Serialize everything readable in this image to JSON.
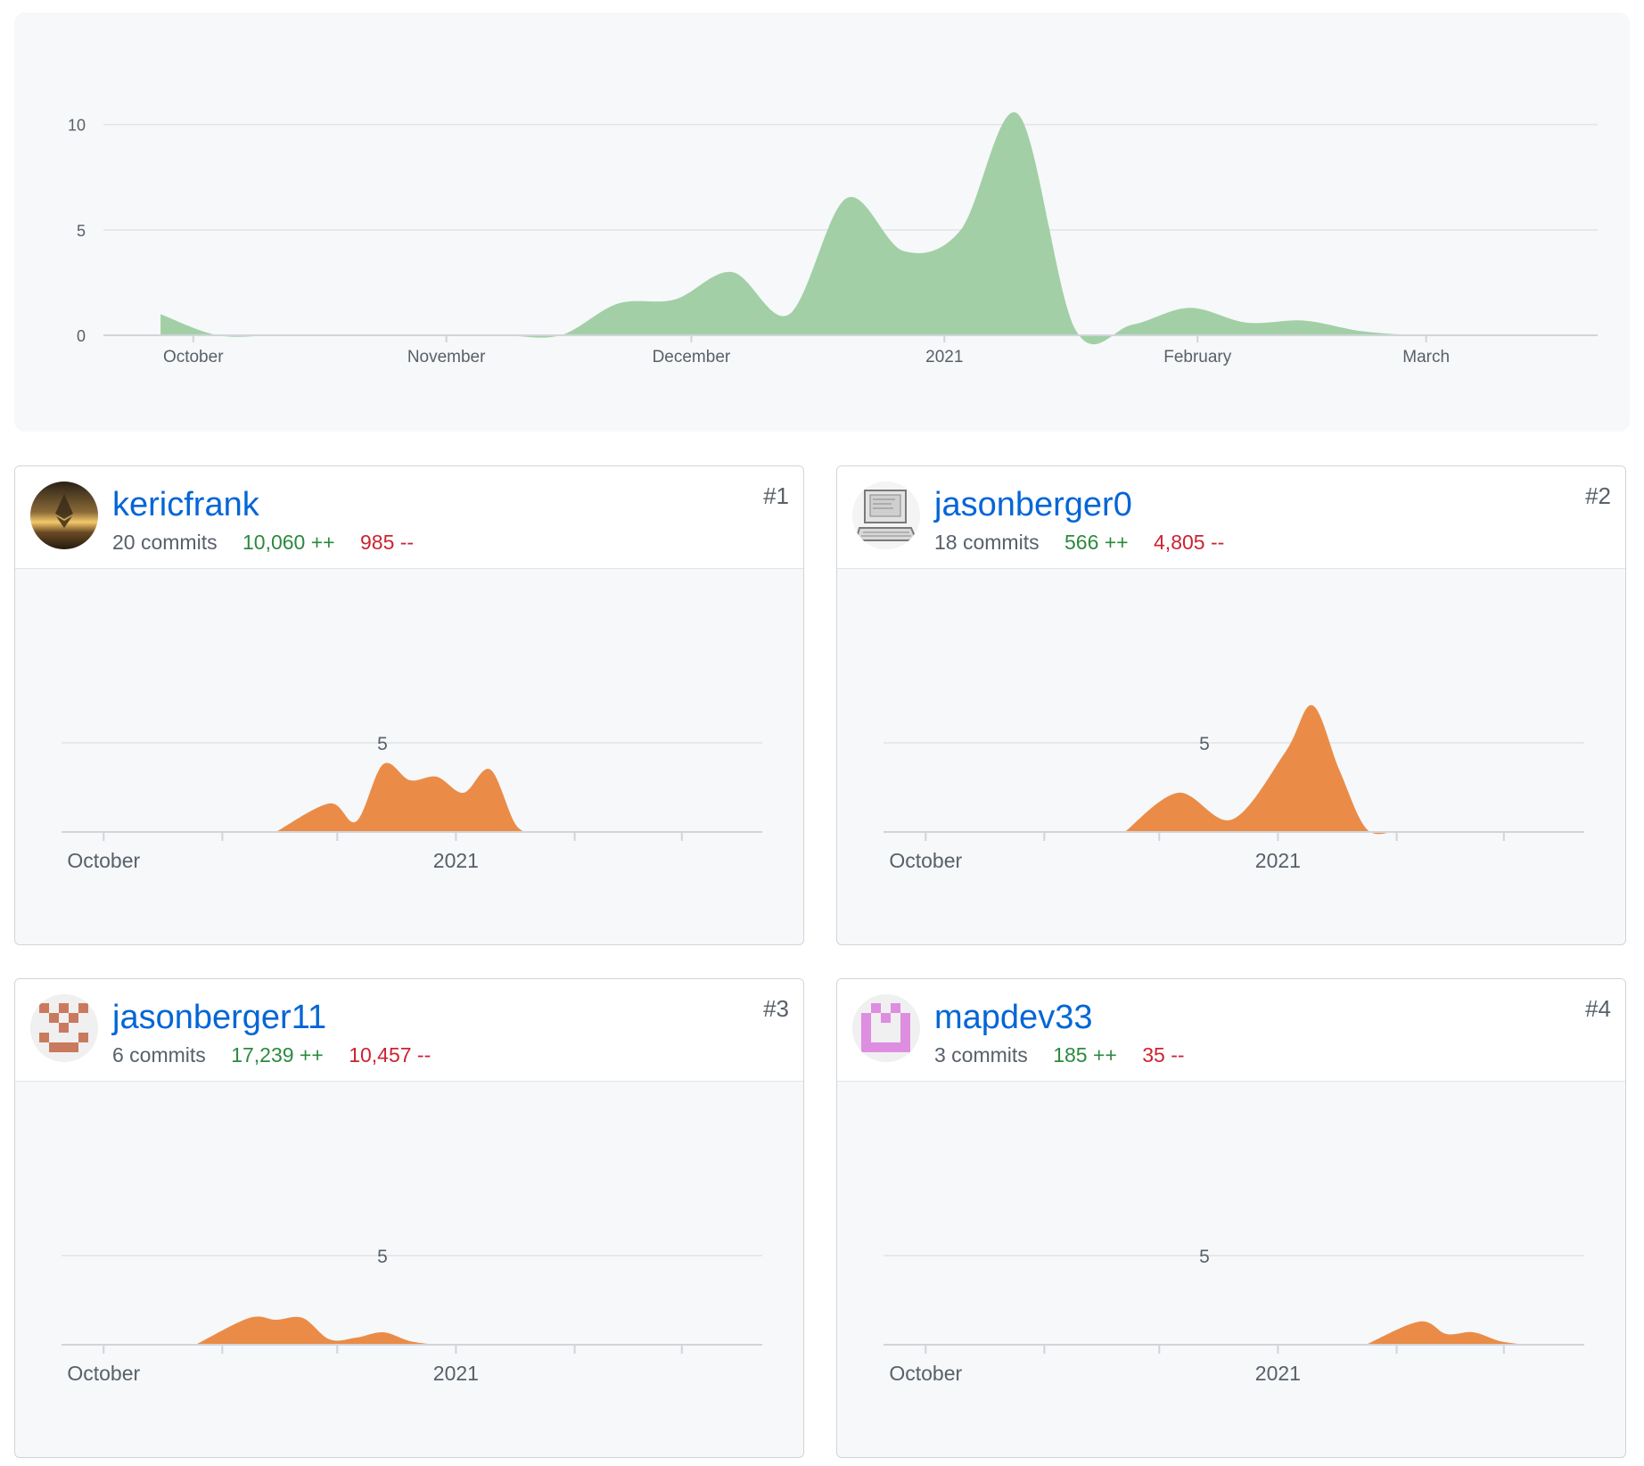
{
  "overview": {
    "chart_data": {
      "type": "area",
      "x_ticks": [
        "October",
        "November",
        "December",
        "2021",
        "February",
        "March"
      ],
      "y_ticks": [
        "0",
        "5",
        "10"
      ],
      "ylim": [
        0,
        11
      ],
      "color": "#a2cfa5",
      "x": [
        "2020-09-27",
        "2020-10-04",
        "2020-10-11",
        "2020-10-18",
        "2020-10-25",
        "2020-11-01",
        "2020-11-08",
        "2020-11-15",
        "2020-11-22",
        "2020-11-29",
        "2020-12-06",
        "2020-12-13",
        "2020-12-20",
        "2020-12-27",
        "2021-01-03",
        "2021-01-10",
        "2021-01-17",
        "2021-01-24",
        "2021-01-31",
        "2021-02-07",
        "2021-02-14",
        "2021-02-21",
        "2021-02-28",
        "2021-03-07",
        "2021-03-14"
      ],
      "values": [
        1,
        0,
        0,
        0,
        0,
        0,
        0,
        0,
        1.5,
        1.7,
        3,
        1,
        6.5,
        4,
        5,
        10.5,
        0.3,
        0.5,
        1.3,
        0.6,
        0.7,
        0.2,
        0,
        0,
        0
      ]
    }
  },
  "contributors": [
    {
      "username": "kericfrank",
      "commits": "20 commits",
      "additions": "10,060 ++",
      "deletions": "985 --",
      "rank": "#1",
      "avatar_icon": "sunset-ethereum-avatar",
      "chart_data": {
        "type": "area",
        "x_ticks": [
          "October",
          "2021"
        ],
        "y_ticks": [
          "5"
        ],
        "ylim": [
          0,
          10
        ],
        "color": "#ea8c47",
        "x": [
          "2020-11-15",
          "2020-11-29",
          "2020-12-06",
          "2020-12-13",
          "2020-12-20",
          "2020-12-27",
          "2021-01-03",
          "2021-01-10",
          "2021-01-17",
          "2021-01-24"
        ],
        "values": [
          0,
          1.6,
          0.6,
          3.8,
          2.9,
          3.1,
          2.2,
          3.5,
          0.3,
          0
        ]
      }
    },
    {
      "username": "jasonberger0",
      "commits": "18 commits",
      "additions": "566 ++",
      "deletions": "4,805 --",
      "rank": "#2",
      "avatar_icon": "computer-sketch-avatar",
      "chart_data": {
        "type": "area",
        "x_ticks": [
          "October",
          "2021"
        ],
        "y_ticks": [
          "5"
        ],
        "ylim": [
          0,
          10
        ],
        "color": "#ea8c47",
        "x": [
          "2020-11-22",
          "2020-12-06",
          "2020-12-20",
          "2021-01-03",
          "2021-01-10",
          "2021-01-17",
          "2021-01-24",
          "2021-01-31"
        ],
        "values": [
          0,
          2.2,
          0.7,
          4.5,
          7.1,
          3.5,
          0.2,
          0
        ]
      }
    },
    {
      "username": "jasonberger11",
      "commits": "6 commits",
      "additions": "17,239 ++",
      "deletions": "10,457 --",
      "rank": "#3",
      "avatar_icon": "identicon-brown-avatar",
      "chart_data": {
        "type": "area",
        "x_ticks": [
          "October",
          "2021"
        ],
        "y_ticks": [
          "5"
        ],
        "ylim": [
          0,
          10
        ],
        "color": "#ea8c47",
        "x": [
          "2020-10-25",
          "2020-11-08",
          "2020-11-15",
          "2020-11-22",
          "2020-11-29",
          "2020-12-06",
          "2020-12-13",
          "2020-12-20",
          "2020-12-27"
        ],
        "values": [
          0,
          1.5,
          1.4,
          1.5,
          0.3,
          0.4,
          0.7,
          0.2,
          0
        ]
      }
    },
    {
      "username": "mapdev33",
      "commits": "3 commits",
      "additions": "185 ++",
      "deletions": "35 --",
      "rank": "#4",
      "avatar_icon": "identicon-pink-avatar",
      "chart_data": {
        "type": "area",
        "x_ticks": [
          "October",
          "2021"
        ],
        "y_ticks": [
          "5"
        ],
        "ylim": [
          0,
          10
        ],
        "color": "#ea8c47",
        "x": [
          "2021-01-24",
          "2021-02-07",
          "2021-02-14",
          "2021-02-21",
          "2021-02-28",
          "2021-03-07"
        ],
        "values": [
          0,
          1.3,
          0.6,
          0.7,
          0.2,
          0
        ]
      }
    }
  ]
}
